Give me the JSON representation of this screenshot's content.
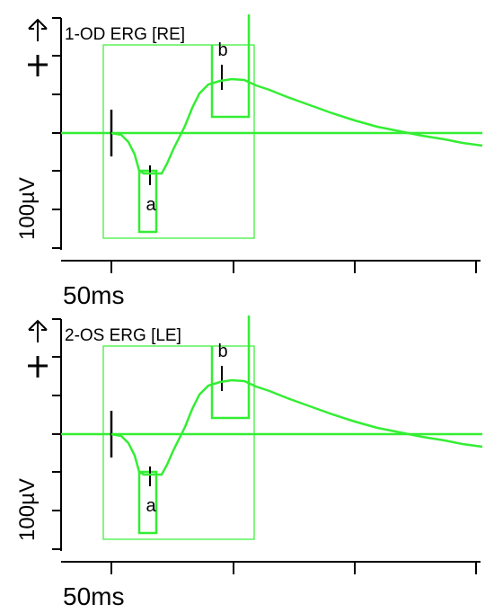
{
  "panels": [
    {
      "label": "1-OD ERG [RE]",
      "amplitude_scale": "100µV",
      "time_scale": "50ms",
      "a_label": "a",
      "b_label": "b"
    },
    {
      "label": "2-OS ERG [LE]",
      "amplitude_scale": "100µV",
      "time_scale": "50ms",
      "a_label": "a",
      "b_label": "b"
    }
  ]
}
